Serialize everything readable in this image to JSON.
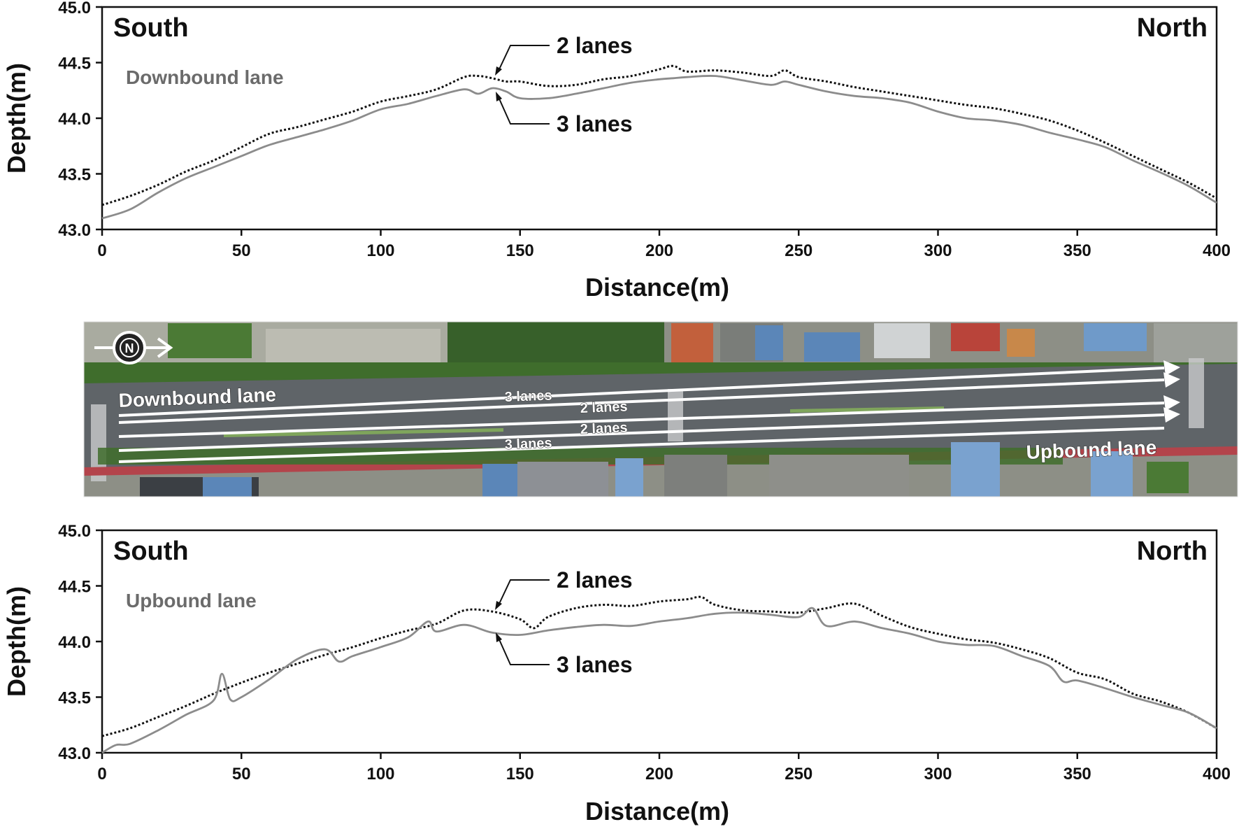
{
  "chart_data": [
    {
      "type": "line",
      "panel_label": "Downbound lane",
      "left_label": "South",
      "right_label": "North",
      "xlabel": "Distance(m)",
      "ylabel": "Depth(m)",
      "xlim": [
        0,
        400
      ],
      "ylim": [
        43.0,
        45.0
      ],
      "xticks": [
        "0",
        "50",
        "100",
        "150",
        "200",
        "250",
        "300",
        "350",
        "400"
      ],
      "yticks": [
        "43.0",
        "43.5",
        "44.0",
        "44.5",
        "45.0"
      ],
      "series": [
        {
          "name": "2 lanes",
          "style": "dotted",
          "color": "#111111",
          "x": [
            0,
            10,
            20,
            30,
            40,
            50,
            60,
            70,
            80,
            90,
            100,
            110,
            120,
            130,
            135,
            140,
            145,
            150,
            160,
            170,
            180,
            190,
            200,
            205,
            210,
            220,
            230,
            240,
            245,
            250,
            260,
            270,
            280,
            290,
            300,
            310,
            320,
            330,
            340,
            350,
            360,
            370,
            380,
            390,
            400
          ],
          "y": [
            43.22,
            43.3,
            43.4,
            43.52,
            43.62,
            43.74,
            43.86,
            43.92,
            43.99,
            44.06,
            44.15,
            44.2,
            44.26,
            44.37,
            44.38,
            44.36,
            44.33,
            44.33,
            44.29,
            44.3,
            44.35,
            44.38,
            44.44,
            44.47,
            44.42,
            44.43,
            44.41,
            44.38,
            44.43,
            44.37,
            44.33,
            44.28,
            44.24,
            44.2,
            44.16,
            44.12,
            44.09,
            44.04,
            43.98,
            43.89,
            43.78,
            43.66,
            43.54,
            43.42,
            43.28
          ]
        },
        {
          "name": "3 lanes",
          "style": "solid",
          "color": "#8c8c8c",
          "x": [
            0,
            10,
            20,
            30,
            40,
            50,
            60,
            70,
            80,
            90,
            100,
            110,
            120,
            130,
            135,
            140,
            145,
            150,
            160,
            170,
            180,
            190,
            200,
            205,
            210,
            220,
            230,
            240,
            245,
            250,
            260,
            270,
            280,
            290,
            300,
            310,
            320,
            330,
            340,
            350,
            360,
            370,
            380,
            390,
            400
          ],
          "y": [
            43.1,
            43.18,
            43.33,
            43.46,
            43.56,
            43.66,
            43.76,
            43.83,
            43.9,
            43.98,
            44.08,
            44.13,
            44.2,
            44.26,
            44.22,
            44.27,
            44.24,
            44.18,
            44.18,
            44.22,
            44.27,
            44.32,
            44.35,
            44.36,
            44.37,
            44.38,
            44.34,
            44.3,
            44.33,
            44.3,
            44.24,
            44.2,
            44.18,
            44.14,
            44.06,
            44.0,
            43.98,
            43.94,
            43.87,
            43.81,
            43.74,
            43.62,
            43.51,
            43.39,
            43.24
          ]
        }
      ],
      "annotations": [
        {
          "text": "2 lanes",
          "x": 142,
          "y": 44.38
        },
        {
          "text": "3 lanes",
          "x": 142,
          "y": 44.24
        }
      ]
    },
    {
      "type": "line",
      "panel_label": "Upbound lane",
      "left_label": "South",
      "right_label": "North",
      "xlabel": "Distance(m)",
      "ylabel": "Depth(m)",
      "xlim": [
        0,
        400
      ],
      "ylim": [
        43.0,
        45.0
      ],
      "xticks": [
        "0",
        "50",
        "100",
        "150",
        "200",
        "250",
        "300",
        "350",
        "400"
      ],
      "yticks": [
        "43.0",
        "43.5",
        "44.0",
        "44.5",
        "45.0"
      ],
      "series": [
        {
          "name": "2 lanes",
          "style": "dotted",
          "color": "#111111",
          "x": [
            0,
            10,
            20,
            30,
            40,
            50,
            60,
            70,
            80,
            90,
            100,
            110,
            120,
            130,
            140,
            150,
            155,
            160,
            170,
            180,
            190,
            200,
            210,
            215,
            220,
            230,
            240,
            250,
            260,
            270,
            280,
            290,
            300,
            310,
            320,
            330,
            340,
            350,
            360,
            370,
            380,
            390,
            400
          ],
          "y": [
            43.15,
            43.22,
            43.32,
            43.42,
            43.53,
            43.63,
            43.72,
            43.8,
            43.88,
            43.95,
            44.03,
            44.1,
            44.16,
            44.28,
            44.27,
            44.2,
            44.12,
            44.22,
            44.3,
            44.33,
            44.32,
            44.36,
            44.38,
            44.4,
            44.33,
            44.28,
            44.27,
            44.26,
            44.3,
            44.34,
            44.23,
            44.13,
            44.07,
            44.02,
            43.99,
            43.93,
            43.85,
            43.72,
            43.66,
            43.53,
            43.46,
            43.36,
            43.22
          ]
        },
        {
          "name": "3 lanes",
          "style": "solid",
          "color": "#8c8c8c",
          "x": [
            0,
            5,
            10,
            20,
            30,
            40,
            43,
            46,
            50,
            60,
            70,
            80,
            85,
            90,
            100,
            110,
            117,
            120,
            130,
            140,
            150,
            160,
            170,
            180,
            190,
            200,
            210,
            220,
            230,
            240,
            250,
            255,
            260,
            270,
            280,
            290,
            300,
            310,
            320,
            330,
            340,
            345,
            350,
            360,
            370,
            380,
            390,
            400
          ],
          "y": [
            43.0,
            43.07,
            43.08,
            43.2,
            43.34,
            43.47,
            43.71,
            43.48,
            43.5,
            43.66,
            43.84,
            43.93,
            43.82,
            43.87,
            43.95,
            44.04,
            44.18,
            44.09,
            44.15,
            44.08,
            44.06,
            44.1,
            44.13,
            44.15,
            44.14,
            44.18,
            44.21,
            44.25,
            44.26,
            44.24,
            44.22,
            44.3,
            44.14,
            44.18,
            44.12,
            44.07,
            44.0,
            43.97,
            43.96,
            43.87,
            43.78,
            43.64,
            43.65,
            43.58,
            43.5,
            43.43,
            43.36,
            43.22
          ]
        }
      ],
      "annotations": [
        {
          "text": "2 lanes",
          "x": 142,
          "y": 44.29
        },
        {
          "text": "3 lanes",
          "x": 142,
          "y": 44.08
        }
      ]
    }
  ],
  "aerial_photo": {
    "compass_label": "N",
    "labels": {
      "downbound": "Downbound lane",
      "upbound": "Upbound lane",
      "lanes_a": "3 lanes",
      "lanes_b": "2 lanes",
      "lanes_c": "2 lanes",
      "lanes_d": "3 lanes"
    },
    "colors": {
      "road": "#5f6468",
      "trees": "#3f6d2c",
      "roofs_blue": "#5b86b8",
      "roofs_red": "#b9443a",
      "sidewalk": "#b3444b"
    }
  }
}
